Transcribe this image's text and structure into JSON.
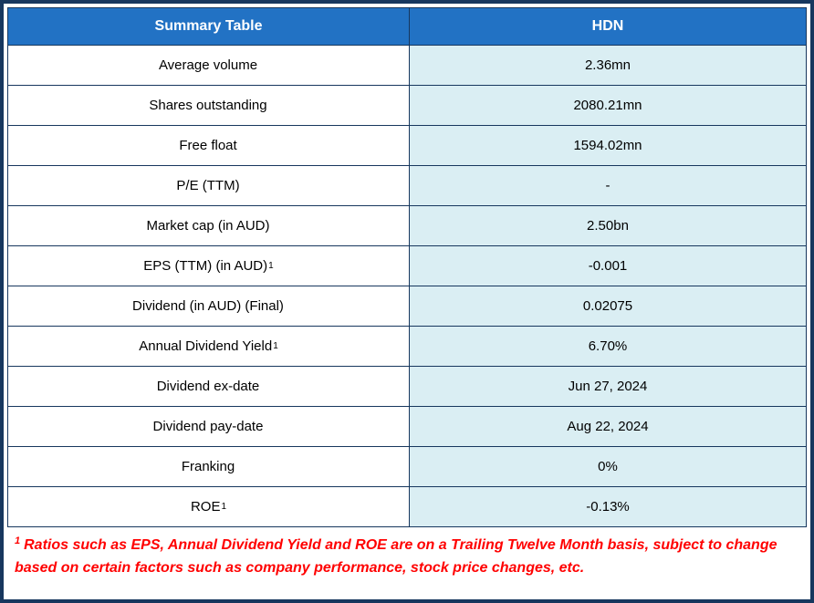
{
  "table": {
    "header": {
      "label_col": "Summary Table",
      "value_col": "HDN"
    },
    "rows": [
      {
        "label": "Average volume",
        "value": "2.36mn"
      },
      {
        "label": "Shares outstanding",
        "value": "2080.21mn"
      },
      {
        "label": "Free float",
        "value": "1594.02mn"
      },
      {
        "label": "P/E (TTM)",
        "value": "-"
      },
      {
        "label": "Market cap (in AUD)",
        "value": "2.50bn"
      },
      {
        "label": "EPS (TTM) (in AUD)",
        "sup": "1",
        "value": "-0.001"
      },
      {
        "label": "Dividend (in AUD) (Final)",
        "value": "0.02075"
      },
      {
        "label": "Annual Dividend Yield",
        "sup": "1",
        "value": "6.70%"
      },
      {
        "label": "Dividend ex-date",
        "value": "Jun 27, 2024"
      },
      {
        "label": "Dividend pay-date",
        "value": "Aug 22, 2024"
      },
      {
        "label": "Franking",
        "value": "0%"
      },
      {
        "label": "ROE",
        "sup": "1",
        "value": "-0.13%"
      }
    ],
    "note": {
      "sup": "1",
      "text": "Ratios such as EPS, Annual Dividend Yield and ROE are on a Trailing Twelve Month basis, subject to change based on certain factors such as company performance, stock price changes, etc."
    }
  },
  "colors": {
    "header_bg": "#2272C4",
    "header_text": "#FFFFFF",
    "value_bg": "#DAEEF3",
    "border": "#17375E",
    "note_text": "#FF0000"
  }
}
